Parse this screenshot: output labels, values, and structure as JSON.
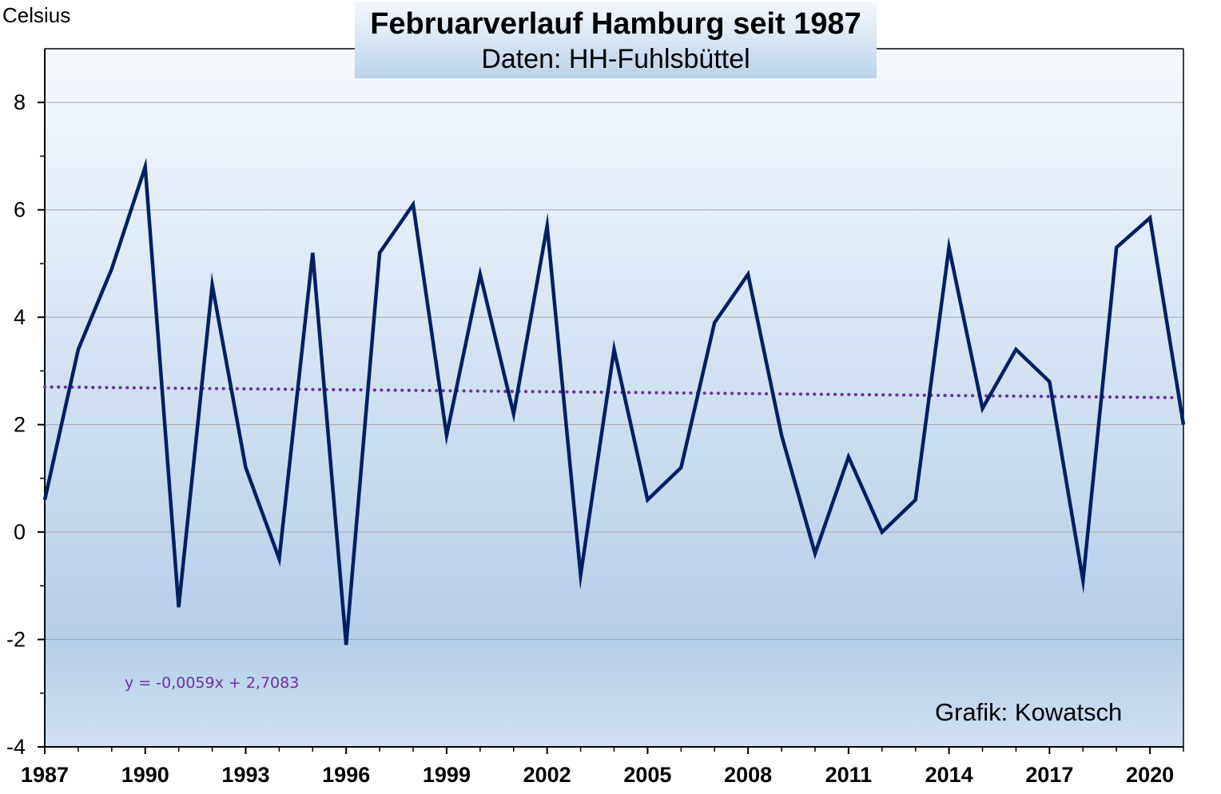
{
  "chart_data": {
    "type": "line",
    "title": "Februarverlauf Hamburg seit 1987",
    "subtitle": "Daten: HH-Fuhlsbüttel",
    "ylabel": "Celsius",
    "xlabel": "",
    "credit": "Grafik: Kowatsch",
    "x": [
      1987,
      1988,
      1989,
      1990,
      1991,
      1992,
      1993,
      1994,
      1995,
      1996,
      1997,
      1998,
      1999,
      2000,
      2001,
      2002,
      2003,
      2004,
      2005,
      2006,
      2007,
      2008,
      2009,
      2010,
      2011,
      2012,
      2013,
      2014,
      2015,
      2016,
      2017,
      2018,
      2019,
      2020,
      2021
    ],
    "series": [
      {
        "values": [
          0.6,
          3.4,
          4.9,
          6.8,
          -1.4,
          4.6,
          1.2,
          -0.5,
          5.2,
          -2.1,
          5.2,
          6.1,
          1.8,
          4.8,
          2.2,
          5.7,
          -0.8,
          3.4,
          0.6,
          1.2,
          3.9,
          4.8,
          1.8,
          -0.4,
          1.4,
          0.0,
          0.6,
          5.3,
          2.3,
          3.4,
          2.8,
          -0.9,
          5.3,
          5.85,
          2.0
        ],
        "color": "#002060"
      }
    ],
    "trendline": {
      "equation": "y = -0,0059x + 2,7083",
      "slope": -0.0059,
      "intercept": 2.7083,
      "color": "#7030a0",
      "style": "dotted"
    },
    "xlim": [
      1987,
      2021
    ],
    "ylim": [
      -4,
      9
    ],
    "xticks": [
      "1987",
      "1990",
      "1993",
      "1996",
      "1999",
      "2002",
      "2005",
      "2008",
      "2011",
      "2014",
      "2017",
      "2020"
    ],
    "yticks": [
      "-4",
      "-2",
      "0",
      "2",
      "4",
      "6",
      "8"
    ],
    "grid": true,
    "legend": "none",
    "background_gradient": [
      "#f5f9fd",
      "#b4cfea",
      "#cfe0f1"
    ]
  }
}
